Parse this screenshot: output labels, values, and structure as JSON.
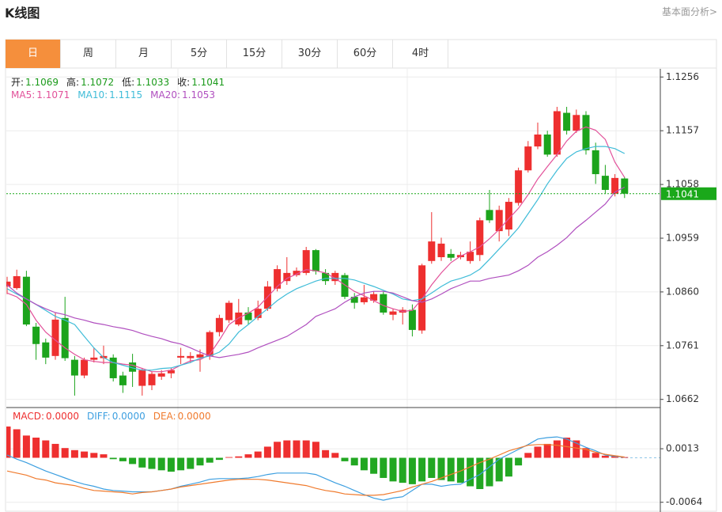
{
  "header": {
    "title": "K线图",
    "link": "基本面分析>"
  },
  "tabs": {
    "items": [
      "日",
      "周",
      "月",
      "5分",
      "15分",
      "30分",
      "60分",
      "4时"
    ],
    "active": 0
  },
  "chart_data": [
    {
      "type": "candlestick",
      "ohlc_labels": [
        "开:",
        "高:",
        "低:",
        "收:"
      ],
      "color_up": "#ee2f2f",
      "color_down": "#1ca41c",
      "value_color": "#1a9a1a",
      "last_price_color": "#1aa81a",
      "ylim": [
        1.0647,
        1.1271
      ],
      "yticks": [
        1.0662,
        1.0761,
        {
          "value": 1.086,
          "label": "1.0860"
        },
        1.0959,
        1.1058,
        1.1157,
        1.1256
      ],
      "grid": true,
      "open": [
        1.087,
        1.0867,
        1.0888,
        1.0796,
        1.0767,
        1.0742,
        1.0812,
        1.0735,
        1.0706,
        1.0735,
        1.0738,
        1.0739,
        1.0706,
        1.073,
        1.0687,
        1.0688,
        1.0704,
        1.071,
        1.0739,
        1.0738,
        1.0739,
        1.0742,
        1.0786,
        1.0808,
        1.08,
        1.0822,
        1.0812,
        1.0829,
        1.0866,
        1.088,
        1.0891,
        1.0895,
        1.0937,
        1.0895,
        1.088,
        1.0891,
        1.0851,
        1.0841,
        1.0844,
        1.0856,
        1.0818,
        1.0822,
        1.0827,
        1.0789,
        1.0917,
        1.0924,
        1.093,
        1.0924,
        1.0917,
        1.0928,
        1.1011,
        1.0972,
        1.0975,
        1.1024,
        1.1084,
        1.1128,
        1.115,
        1.1113,
        1.119,
        1.1157,
        1.1186,
        1.1121,
        1.1074,
        1.1041,
        1.1069
      ],
      "high": [
        1.0888,
        1.0901,
        1.0899,
        1.0803,
        1.0774,
        1.0822,
        1.0851,
        1.0742,
        1.0739,
        1.0757,
        1.0761,
        1.0745,
        1.0713,
        1.0746,
        1.072,
        1.0713,
        1.0716,
        1.072,
        1.0757,
        1.0749,
        1.0754,
        1.0789,
        1.0818,
        1.0844,
        1.0847,
        1.0832,
        1.0844,
        1.088,
        1.0909,
        1.0924,
        1.0905,
        1.0943,
        1.0939,
        1.0902,
        1.0899,
        1.0895,
        1.0858,
        1.0873,
        1.0861,
        1.0861,
        1.0829,
        1.0832,
        1.0837,
        1.0912,
        1.1007,
        1.096,
        1.0939,
        1.0934,
        1.0953,
        1.0997,
        1.1048,
        1.1019,
        1.1033,
        1.1089,
        1.1138,
        1.1172,
        1.1157,
        1.1201,
        1.1201,
        1.1196,
        1.1193,
        1.1135,
        1.1094,
        1.1077,
        1.1072
      ],
      "low": [
        1.0856,
        1.0864,
        1.0797,
        1.0735,
        1.0727,
        1.0735,
        1.0733,
        1.0669,
        1.0701,
        1.073,
        1.0727,
        1.0695,
        1.0674,
        1.0685,
        1.0669,
        1.0679,
        1.0698,
        1.0701,
        1.0727,
        1.0729,
        1.0713,
        1.0735,
        1.0778,
        1.0803,
        1.0797,
        1.08,
        1.0808,
        1.0825,
        1.0861,
        1.0873,
        1.0888,
        1.0891,
        1.0892,
        1.0873,
        1.0873,
        1.0847,
        1.0829,
        1.0837,
        1.084,
        1.0818,
        1.0808,
        1.08,
        1.0778,
        1.0783,
        1.0912,
        1.0917,
        1.0917,
        1.092,
        1.0912,
        1.0917,
        1.0987,
        1.0953,
        1.0963,
        1.1019,
        1.108,
        1.1123,
        1.1109,
        1.1109,
        1.115,
        1.1153,
        1.1113,
        1.1059,
        1.1041,
        1.1036,
        1.1033
      ],
      "close": [
        1.0879,
        1.0889,
        1.08,
        1.0764,
        1.0739,
        1.0809,
        1.0738,
        1.0706,
        1.0735,
        1.0739,
        1.0742,
        1.0701,
        1.0688,
        1.0713,
        1.0716,
        1.0709,
        1.071,
        1.0716,
        1.0742,
        1.0742,
        1.0745,
        1.0786,
        1.0812,
        1.084,
        1.0822,
        1.0808,
        1.0829,
        1.087,
        1.0902,
        1.0895,
        1.0899,
        1.0937,
        1.0898,
        1.088,
        1.0895,
        1.0851,
        1.084,
        1.085,
        1.0856,
        1.0822,
        1.0824,
        1.0827,
        1.079,
        1.0909,
        1.0953,
        1.0949,
        1.0923,
        1.0928,
        1.0934,
        1.0992,
        1.0992,
        1.1011,
        1.1026,
        1.1084,
        1.1128,
        1.115,
        1.1113,
        1.1193,
        1.1157,
        1.1186,
        1.1121,
        1.1077,
        1.1048,
        1.107,
        1.1041
      ],
      "series": [
        {
          "name": "MA5:",
          "color": "#e2519a",
          "values": [
            1.0858,
            1.0851,
            1.0837,
            1.0808,
            1.0786,
            1.0771,
            1.0757,
            1.0745,
            1.0735,
            1.0732,
            1.073,
            1.073,
            1.0727,
            1.0725,
            1.0719,
            1.0713,
            1.0713,
            1.0716,
            1.0725,
            1.0733,
            1.0735,
            1.0745,
            1.0771,
            1.08,
            1.0812,
            1.0821,
            1.0832,
            1.0851,
            1.087,
            1.0885,
            1.0893,
            1.0901,
            1.0899,
            1.0895,
            1.0885,
            1.0873,
            1.0861,
            1.0853,
            1.0844,
            1.0835,
            1.0829,
            1.0824,
            1.0826,
            1.0847,
            1.0873,
            1.0895,
            1.0914,
            1.0926,
            1.0934,
            1.0943,
            1.0958,
            1.0975,
            1.0995,
            1.1014,
            1.1039,
            1.1068,
            1.1091,
            1.1113,
            1.1138,
            1.1156,
            1.1164,
            1.1158,
            1.1141,
            1.1099,
            1.1071
          ]
        },
        {
          "name": "MA10:",
          "color": "#3fbcd8",
          "values": [
            1.0866,
            1.0856,
            1.0847,
            1.0837,
            1.0826,
            1.0815,
            1.0808,
            1.08,
            1.0778,
            1.0757,
            1.0739,
            1.073,
            1.0725,
            1.072,
            1.0716,
            1.0716,
            1.0719,
            1.072,
            1.0725,
            1.073,
            1.0738,
            1.0742,
            1.0749,
            1.0764,
            1.0786,
            1.08,
            1.0815,
            1.0829,
            1.0844,
            1.0856,
            1.0866,
            1.0873,
            1.088,
            1.0885,
            1.0885,
            1.0885,
            1.0882,
            1.0876,
            1.087,
            1.0863,
            1.0856,
            1.0847,
            1.0844,
            1.0847,
            1.0858,
            1.087,
            1.088,
            1.0885,
            1.0891,
            1.0902,
            1.092,
            1.0939,
            1.0958,
            1.0978,
            1.1004,
            1.103,
            1.1059,
            1.1084,
            1.1106,
            1.1118,
            1.1124,
            1.1128,
            1.1128,
            1.1124,
            1.1115
          ]
        },
        {
          "name": "MA20:",
          "color": "#b04fbf",
          "values": [
            1.0873,
            1.0858,
            1.0847,
            1.0837,
            1.0829,
            1.0822,
            1.0818,
            1.0812,
            1.0808,
            1.0803,
            1.08,
            1.0796,
            1.0793,
            1.0789,
            1.0783,
            1.0778,
            1.0774,
            1.0768,
            1.0764,
            1.0757,
            1.0749,
            1.0742,
            1.0739,
            1.0742,
            1.0745,
            1.0749,
            1.0757,
            1.0764,
            1.0771,
            1.0778,
            1.0789,
            1.08,
            1.0815,
            1.0822,
            1.0829,
            1.0841,
            1.0851,
            1.0858,
            1.0861,
            1.0861,
            1.0858,
            1.0851,
            1.0844,
            1.0841,
            1.0847,
            1.0856,
            1.0866,
            1.0873,
            1.088,
            1.088,
            1.0885,
            1.0888,
            1.0891,
            1.0899,
            1.0909,
            1.0924,
            1.0934,
            1.0946,
            1.096,
            1.0978,
            1.0992,
            1.1007,
            1.1022,
            1.1044,
            1.1053
          ]
        }
      ]
    },
    {
      "type": "macd",
      "ylim": [
        -0.0078,
        0.007
      ],
      "yticks": [
        -0.0064,
        0.0013
      ],
      "grid": true,
      "color_down": "#22a722",
      "legend_values": [
        {
          "value": 0,
          "label": "0.0000"
        },
        {
          "value": 0,
          "label": "0.0000"
        },
        {
          "value": 0,
          "label": "0.0000"
        }
      ],
      "series": [
        {
          "name": "MACD:",
          "style": "bar",
          "color": "#ee2f2f",
          "values": [
            0.0045,
            0.0041,
            0.0032,
            0.0029,
            0.0025,
            0.002,
            0.0014,
            0.0011,
            0.0009,
            0.0007,
            0.0005,
            -0.0002,
            -0.0005,
            -0.0009,
            -0.0014,
            -0.0016,
            -0.0018,
            -0.002,
            -0.0018,
            -0.0016,
            -0.0011,
            -0.0007,
            -0.0003,
            0.0001,
            0.0002,
            0.0005,
            0.0009,
            0.0016,
            0.0023,
            0.0025,
            0.0025,
            0.0025,
            0.0023,
            0.0011,
            0.0007,
            -0.0005,
            -0.0011,
            -0.0018,
            -0.0023,
            -0.0029,
            -0.0034,
            -0.0036,
            -0.0038,
            -0.0034,
            -0.0029,
            -0.0032,
            -0.0034,
            -0.0036,
            -0.0041,
            -0.0045,
            -0.0041,
            -0.0034,
            -0.0027,
            -0.0011,
            0.0007,
            0.0016,
            0.002,
            0.0025,
            0.0029,
            0.0025,
            0.0014,
            0.0007,
            0.0003,
            0.0003,
            0.0001
          ]
        },
        {
          "name": "DIFF:",
          "style": "line",
          "color": "#3d9fe0",
          "values": [
            0.0004,
            -0.0002,
            -0.0007,
            -0.0013,
            -0.0019,
            -0.0024,
            -0.0029,
            -0.0034,
            -0.0038,
            -0.0041,
            -0.0045,
            -0.0047,
            -0.0048,
            -0.0049,
            -0.0049,
            -0.0049,
            -0.0047,
            -0.0045,
            -0.0041,
            -0.0038,
            -0.0035,
            -0.0031,
            -0.003,
            -0.003,
            -0.003,
            -0.0029,
            -0.0027,
            -0.0024,
            -0.0022,
            -0.0022,
            -0.0022,
            -0.0022,
            -0.0024,
            -0.003,
            -0.0036,
            -0.0041,
            -0.0047,
            -0.0053,
            -0.0058,
            -0.0061,
            -0.0058,
            -0.0056,
            -0.0047,
            -0.0038,
            -0.0038,
            -0.0041,
            -0.0039,
            -0.0038,
            -0.0031,
            -0.0024,
            -0.0013,
            -0.0002,
            0.0005,
            0.0012,
            0.0019,
            0.0027,
            0.0029,
            0.003,
            0.0027,
            0.0021,
            0.0015,
            0.001,
            0.0004,
            0.0002,
            0.0001
          ]
        },
        {
          "name": "DEA:",
          "style": "line",
          "color": "#f07b2e",
          "values": [
            -0.0019,
            -0.0022,
            -0.0025,
            -0.003,
            -0.0032,
            -0.0036,
            -0.0038,
            -0.004,
            -0.0044,
            -0.0047,
            -0.0048,
            -0.0049,
            -0.005,
            -0.0052,
            -0.005,
            -0.0049,
            -0.0047,
            -0.0045,
            -0.0042,
            -0.004,
            -0.0038,
            -0.0036,
            -0.0034,
            -0.0032,
            -0.0031,
            -0.0031,
            -0.0031,
            -0.0032,
            -0.0034,
            -0.0036,
            -0.0038,
            -0.004,
            -0.0044,
            -0.0047,
            -0.0049,
            -0.0052,
            -0.0053,
            -0.0054,
            -0.0054,
            -0.0053,
            -0.005,
            -0.0047,
            -0.0042,
            -0.0038,
            -0.0034,
            -0.0029,
            -0.0024,
            -0.0019,
            -0.0013,
            -0.0007,
            -0.0002,
            0.0004,
            0.001,
            0.0014,
            0.0018,
            0.0019,
            0.0019,
            0.0018,
            0.0016,
            0.0014,
            0.0012,
            0.0008,
            0.0005,
            0.0003,
            0.0001
          ]
        }
      ]
    }
  ]
}
